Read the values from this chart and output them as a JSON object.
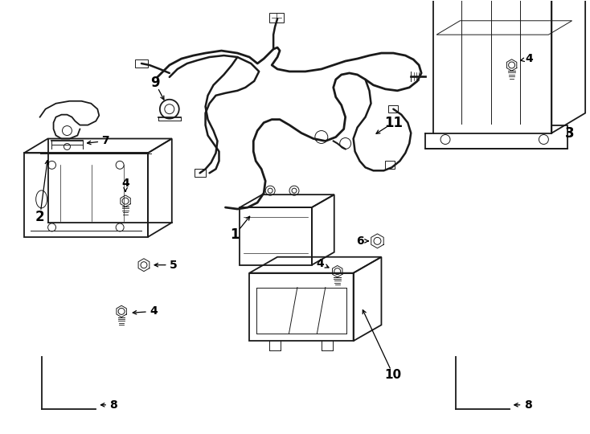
{
  "bg_color": "#ffffff",
  "line_color": "#1a1a1a",
  "fig_width": 7.34,
  "fig_height": 5.4,
  "dpi": 100,
  "lw_main": 1.3,
  "lw_thin": 0.7,
  "lw_thick": 1.8
}
